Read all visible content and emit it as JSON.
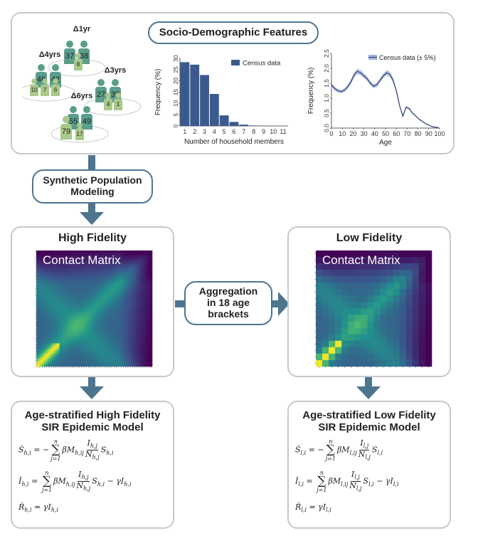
{
  "top": {
    "title": "Socio-Demographic Features",
    "people": {
      "groups": [
        {
          "label": "Δ1yr",
          "numbers": [
            "37",
            "38",
            "8"
          ]
        },
        {
          "label": "Δ4yrs",
          "numbers": [
            "46",
            "42",
            "10",
            "7",
            "6"
          ]
        },
        {
          "label": "Δ3yrs",
          "numbers": [
            "27",
            "30",
            "4",
            "1"
          ]
        },
        {
          "label": "Δ6yrs",
          "numbers": [
            "55",
            "49",
            "79",
            "17"
          ]
        }
      ]
    }
  },
  "chart_data": [
    {
      "type": "bar",
      "categories": [
        "1",
        "2",
        "3",
        "4",
        "5",
        "6",
        "7",
        "8",
        "9",
        "10",
        "11"
      ],
      "values": [
        28.3,
        27.2,
        22.6,
        14.2,
        4.7,
        1.8,
        0.6,
        0.2,
        0.1,
        0.05,
        0.02
      ],
      "xlabel": "Number of household members",
      "ylabel": "Frequency (%)",
      "ylim": [
        0,
        30
      ],
      "yticks": [
        "0",
        "5",
        "10",
        "15",
        "20",
        "25",
        "30"
      ],
      "legend": "Census data",
      "color": "#3a5a8f"
    },
    {
      "type": "line",
      "x": [
        0,
        3,
        6,
        9,
        12,
        15,
        18,
        21,
        24,
        27,
        30,
        33,
        36,
        39,
        42,
        45,
        48,
        51,
        54,
        57,
        60,
        63,
        66,
        69,
        72,
        75,
        78,
        81,
        84,
        87,
        90,
        93,
        96,
        99
      ],
      "y": [
        1.45,
        1.32,
        1.25,
        1.22,
        1.27,
        1.38,
        1.55,
        1.78,
        1.9,
        1.85,
        1.75,
        1.65,
        1.5,
        1.4,
        1.45,
        1.6,
        1.75,
        1.85,
        1.8,
        1.6,
        1.25,
        0.75,
        0.4,
        0.7,
        0.65,
        0.5,
        0.4,
        0.3,
        0.22,
        0.15,
        0.1,
        0.05,
        0.03,
        0.02
      ],
      "xlabel": "Age",
      "ylabel": "Frequency (%)",
      "xlim": [
        0,
        100
      ],
      "ylim": [
        0,
        2.5
      ],
      "xticks": [
        "0",
        "10",
        "20",
        "30",
        "40",
        "50",
        "60",
        "70",
        "80",
        "90",
        "100"
      ],
      "yticks": [
        "0.0",
        "0.5",
        "1.0",
        "1.5",
        "2.0",
        "2.5"
      ],
      "legend": "Census data (± 5%)",
      "color": "#2c3e6e",
      "band_color": "#9fb3d9"
    }
  ],
  "synthetic": {
    "line1": "Synthetic Population",
    "line2": "Modeling"
  },
  "high": {
    "title": "High Fidelity",
    "matrix_label": "Contact Matrix",
    "model_title1": "Age-stratified High Fidelity",
    "model_title2": "SIR Epidemic Model",
    "sub": "h"
  },
  "low": {
    "title": "Low Fidelity",
    "matrix_label": "Contact Matrix",
    "model_title1": "Age-stratified Low Fidelity",
    "model_title2": "SIR Epidemic Model",
    "sub": "l"
  },
  "aggregation": {
    "line1": "Aggregation",
    "line2": "in 18 age",
    "line3": "brackets"
  },
  "colors": {
    "arrow": "#4e7590",
    "panel_border": "#c9c9c9",
    "person_dark": "#5a9e8c",
    "person_light": "#a9c98a"
  }
}
